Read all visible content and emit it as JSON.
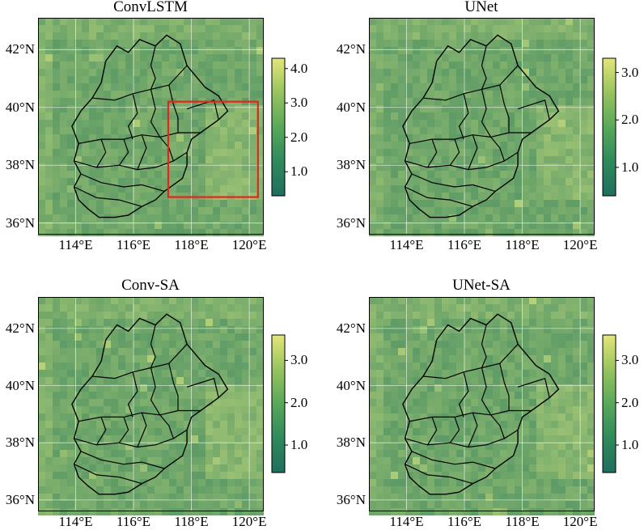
{
  "panels": [
    {
      "title": "ConvLSTM",
      "colorbar": {
        "min": 0.3,
        "max": 4.3,
        "ticks": [
          "1.0",
          "2.0",
          "3.0",
          "4.0"
        ],
        "values": [
          1.0,
          2.0,
          3.0,
          4.0
        ]
      },
      "highlight_box": true
    },
    {
      "title": "UNet",
      "colorbar": {
        "min": 0.4,
        "max": 3.3,
        "ticks": [
          "1.0",
          "2.0",
          "3.0"
        ],
        "values": [
          1.0,
          2.0,
          3.0
        ]
      },
      "highlight_box": false
    },
    {
      "title": "Conv-SA",
      "colorbar": {
        "min": 0.35,
        "max": 3.6,
        "ticks": [
          "1.0",
          "2.0",
          "3.0"
        ],
        "values": [
          1.0,
          2.0,
          3.0
        ]
      },
      "highlight_box": false
    },
    {
      "title": "UNet-SA",
      "colorbar": {
        "min": 0.35,
        "max": 3.6,
        "ticks": [
          "1.0",
          "2.0",
          "3.0"
        ],
        "values": [
          1.0,
          2.0,
          3.0
        ]
      },
      "highlight_box": false
    }
  ],
  "axes": {
    "lat_ticks": [
      "42°N",
      "40°N",
      "38°N",
      "36°N"
    ],
    "lat_values": [
      42,
      40,
      38,
      36
    ],
    "lon_ticks": [
      "114°E",
      "116°E",
      "118°E",
      "120°E"
    ],
    "lon_values": [
      114,
      116,
      118,
      120
    ],
    "lon_range": [
      112.7,
      120.5
    ],
    "lat_range": [
      35.6,
      43.1
    ]
  },
  "colors": {
    "map_low": "#2e7d5b",
    "map_mid": "#3f9357",
    "map_high": "#b7d37a",
    "colormap": [
      "#1f6e5e",
      "#2e8a5c",
      "#58a85a",
      "#98c35e",
      "#e3e67a"
    ],
    "highlight_box": "#e3261c",
    "boundary": "#000000"
  }
}
